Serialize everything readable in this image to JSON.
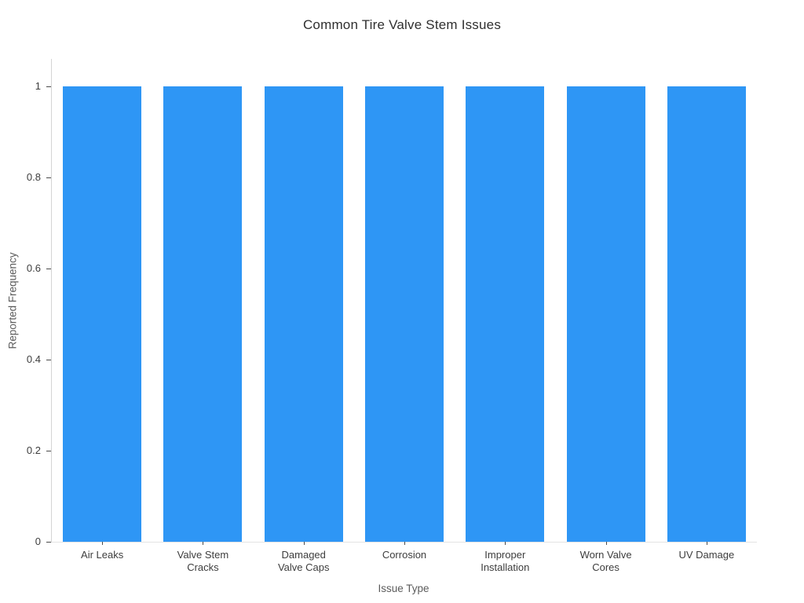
{
  "chart_data": {
    "type": "bar",
    "title": "Common Tire Valve Stem Issues",
    "xlabel": "Issue Type",
    "ylabel": "Reported Frequency",
    "categories": [
      "Air Leaks",
      "Valve Stem\nCracks",
      "Damaged\nValve Caps",
      "Corrosion",
      "Improper\nInstallation",
      "Worn Valve\nCores",
      "UV Damage"
    ],
    "values": [
      1,
      1,
      1,
      1,
      1,
      1,
      1
    ],
    "yticks": [
      0,
      0.2,
      0.4,
      0.6,
      0.8,
      1
    ],
    "ylim": [
      0,
      1.06
    ],
    "bar_color": "#2E96F5",
    "bar_band_fraction": 0.78,
    "grid": false,
    "legend": false
  }
}
